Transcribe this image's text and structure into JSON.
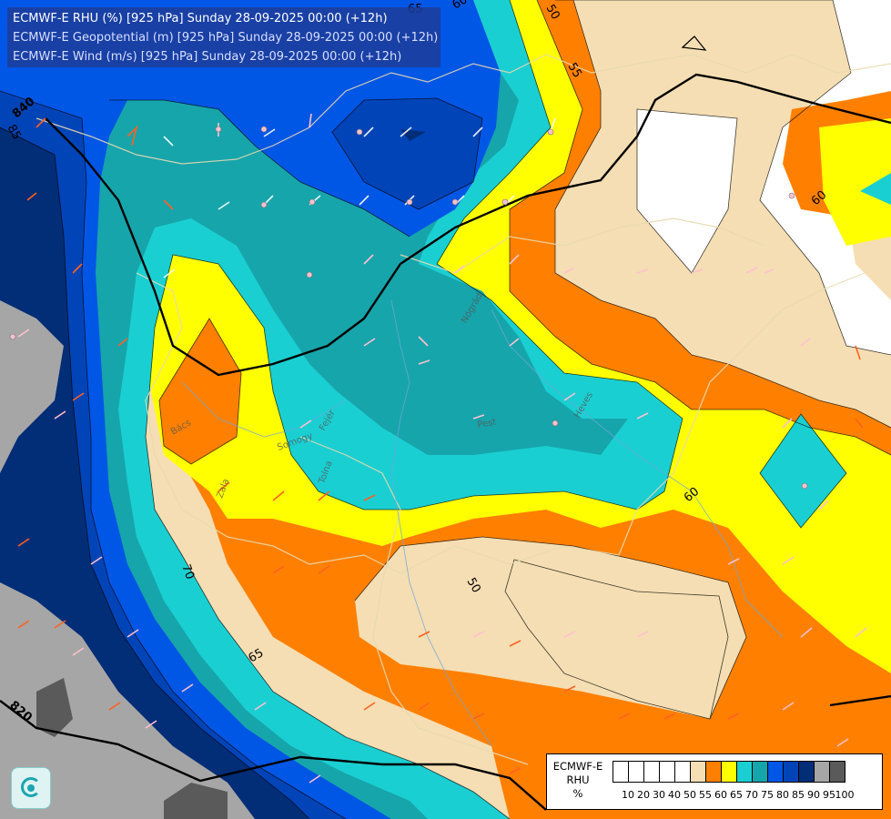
{
  "map": {
    "title_lines": [
      "ECMWF-E RHU (%) [925 hPa] Sunday 28-09-2025 00:00 (+12h)",
      "ECMWF-E Geopotential (m) [925 hPa] Sunday 28-09-2025 00:00 (+12h)",
      "ECMWF-E Wind (m/s) [925 hPa] Sunday 28-09-2025 00:00 (+12h)"
    ],
    "rhu_contour_labels": [
      "50",
      "50",
      "55",
      "60",
      "60",
      "60",
      "65",
      "65",
      "70",
      "85"
    ],
    "geopotential_labels": [
      "840",
      "820"
    ],
    "place_labels": [
      "Zala",
      "Somogy",
      "Tolna",
      "Fejér",
      "Pest",
      "Nógrád",
      "Heves",
      "Bács"
    ]
  },
  "legend": {
    "title_lines": [
      "ECMWF-E",
      "RHU",
      "%"
    ],
    "levels": [
      "10",
      "20",
      "30",
      "40",
      "50",
      "55",
      "60",
      "65",
      "70",
      "75",
      "80",
      "85",
      "90",
      "95",
      "100"
    ],
    "colors": [
      "#ffffff",
      "#ffffff",
      "#ffffff",
      "#ffffff",
      "#ffffff",
      "#f5deb3",
      "#ff8000",
      "#ffff00",
      "#1acfd2",
      "#16a5ab",
      "#0056e5",
      "#0044b8",
      "#022d77",
      "#a6a6a6",
      "#5a5a5a"
    ]
  },
  "logo": {
    "icon": "ecmwf-logo-icon"
  }
}
